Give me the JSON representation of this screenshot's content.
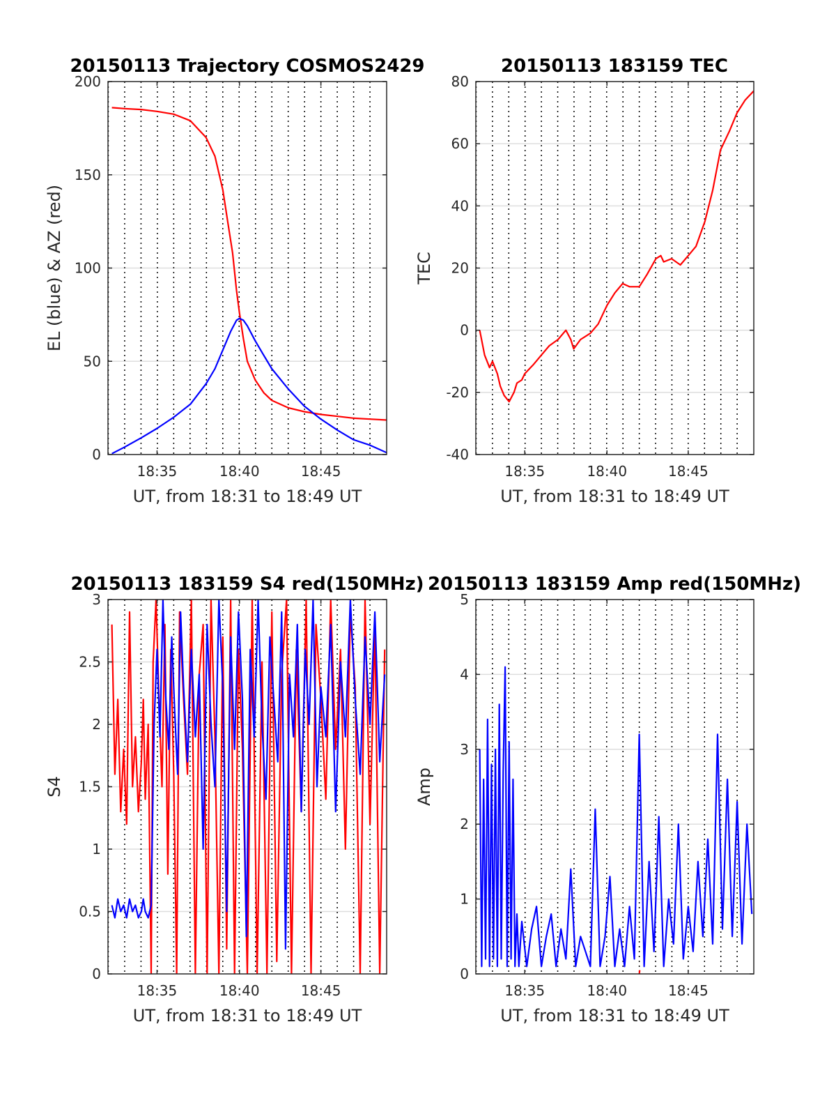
{
  "chart_data": [
    {
      "type": "line",
      "title": "20150113 Trajectory COSMOS2429",
      "xlabel": "UT, from 18:31 to 18:49 UT",
      "ylabel": "EL (blue) & AZ (red)",
      "xlim": [
        18.533,
        18.817
      ],
      "ylim": [
        0,
        200
      ],
      "xticks": [
        18.583,
        18.667,
        18.75
      ],
      "xtick_labels": [
        "18:35",
        "18:40",
        "18:45"
      ],
      "yticks": [
        0,
        50,
        100,
        150,
        200
      ],
      "ytick_labels": [
        "0",
        "50",
        "100",
        "150",
        "200"
      ],
      "grid": "vertical dotted minute lines, horizontal gridlines",
      "series": [
        {
          "color": "#ff0000",
          "x": [
            18.537,
            18.55,
            18.567,
            18.583,
            18.6,
            18.617,
            18.633,
            18.642,
            18.65,
            18.655,
            18.66,
            18.664,
            18.667,
            18.671,
            18.675,
            18.683,
            18.692,
            18.7,
            18.717,
            18.733,
            18.75,
            18.767,
            18.783,
            18.8,
            18.817
          ],
          "values": [
            186,
            185.5,
            185,
            184,
            182.5,
            179,
            170,
            160,
            142,
            125,
            108,
            88,
            76,
            62,
            50,
            40,
            33,
            29,
            25,
            23,
            21.5,
            20.5,
            19.5,
            19,
            18.5
          ]
        },
        {
          "color": "#0000ff",
          "x": [
            18.537,
            18.55,
            18.567,
            18.583,
            18.6,
            18.617,
            18.633,
            18.642,
            18.65,
            18.658,
            18.664,
            18.667,
            18.671,
            18.675,
            18.683,
            18.692,
            18.7,
            18.717,
            18.733,
            18.75,
            18.767,
            18.783,
            18.8,
            18.817
          ],
          "values": [
            0.5,
            4,
            9,
            14,
            20,
            27,
            38,
            46,
            56,
            66,
            72,
            73,
            72,
            69,
            61,
            53,
            46,
            35,
            26,
            19,
            13,
            8,
            5,
            1
          ]
        }
      ]
    },
    {
      "type": "line",
      "title": "20150113 183159 TEC",
      "xlabel": "UT, from 18:31 to 18:49 UT",
      "ylabel": "TEC",
      "xlim": [
        18.533,
        18.817
      ],
      "ylim": [
        -40,
        80
      ],
      "xticks": [
        18.583,
        18.667,
        18.75
      ],
      "xtick_labels": [
        "18:35",
        "18:40",
        "18:45"
      ],
      "yticks": [
        -40,
        -20,
        0,
        20,
        40,
        60,
        80
      ],
      "ytick_labels": [
        "-40",
        "-20",
        "0",
        "20",
        "40",
        "60",
        "80"
      ],
      "grid": "vertical dotted minute lines, horizontal gridlines",
      "series": [
        {
          "color": "#ff0000",
          "x": [
            18.537,
            18.542,
            18.547,
            18.55,
            18.555,
            18.558,
            18.562,
            18.567,
            18.572,
            18.575,
            18.58,
            18.583,
            18.592,
            18.6,
            18.608,
            18.617,
            18.625,
            18.63,
            18.633,
            18.64,
            18.65,
            18.658,
            18.667,
            18.675,
            18.683,
            18.69,
            18.7,
            18.708,
            18.717,
            18.722,
            18.725,
            18.733,
            18.742,
            18.75,
            18.758,
            18.767,
            18.775,
            18.783,
            18.792,
            18.8,
            18.808,
            18.817
          ],
          "values": [
            0,
            -8,
            -12,
            -10,
            -14,
            -18,
            -21,
            -23,
            -20,
            -17,
            -16,
            -14,
            -11,
            -8,
            -5,
            -3,
            0,
            -3,
            -6,
            -3,
            -1,
            2,
            8,
            12,
            15,
            14,
            14,
            18,
            23,
            24,
            22,
            23,
            21,
            24,
            27,
            35,
            45,
            58,
            64,
            70,
            74,
            77
          ]
        }
      ]
    },
    {
      "type": "line",
      "title": "20150113 183159 S4 red(150MHz)",
      "xlabel": "UT, from 18:31 to 18:49 UT",
      "ylabel": "S4",
      "xlim": [
        18.533,
        18.817
      ],
      "ylim": [
        0,
        3
      ],
      "xticks": [
        18.583,
        18.667,
        18.75
      ],
      "xtick_labels": [
        "18:35",
        "18:40",
        "18:45"
      ],
      "yticks": [
        0,
        0.5,
        1,
        1.5,
        2,
        2.5,
        3
      ],
      "ytick_labels": [
        "0",
        "0.5",
        "1",
        "1.5",
        "2",
        "2.5",
        "3"
      ],
      "grid": "vertical dotted minute lines, horizontal gridlines",
      "series": [
        {
          "color": "#ff0000",
          "x": [
            18.537,
            18.54,
            18.543,
            18.546,
            18.549,
            18.552,
            18.555,
            18.558,
            18.561,
            18.564,
            18.567,
            18.569,
            18.571,
            18.574,
            18.577,
            18.579,
            18.582,
            18.585,
            18.588,
            18.591,
            18.594,
            18.597,
            18.6,
            18.603,
            18.606,
            18.61,
            18.614,
            18.618,
            18.622,
            18.626,
            18.63,
            18.634,
            18.638,
            18.642,
            18.646,
            18.65,
            18.654,
            18.658,
            18.662,
            18.666,
            18.67,
            18.675,
            18.68,
            18.685,
            18.69,
            18.695,
            18.7,
            18.705,
            18.71,
            18.715,
            18.72,
            18.725,
            18.73,
            18.735,
            18.74,
            18.745,
            18.75,
            18.755,
            18.76,
            18.765,
            18.77,
            18.775,
            18.78,
            18.785,
            18.79,
            18.795,
            18.8,
            18.805,
            18.81,
            18.815
          ],
          "values": [
            2.8,
            1.6,
            2.2,
            1.3,
            1.8,
            1.2,
            2.9,
            1.5,
            1.9,
            1.3,
            1.7,
            2.2,
            1.4,
            2.0,
            0.0,
            2.5,
            3.0,
            2.2,
            1.5,
            2.8,
            0.8,
            2.6,
            1.6,
            0.0,
            2.9,
            2.2,
            1.6,
            3.0,
            0.0,
            2.4,
            2.8,
            0.0,
            3.0,
            1.9,
            0.0,
            2.7,
            0.2,
            3.0,
            0.0,
            2.6,
            1.8,
            0.0,
            3.0,
            0.0,
            2.5,
            0.0,
            2.9,
            0.1,
            2.4,
            3.0,
            0.0,
            2.6,
            1.3,
            3.0,
            0.0,
            2.8,
            2.2,
            1.4,
            3.0,
            1.8,
            2.6,
            1.0,
            2.9,
            2.3,
            0.0,
            3.0,
            1.2,
            2.8,
            0.0,
            2.6
          ]
        },
        {
          "color": "#0000ff",
          "x": [
            18.537,
            18.54,
            18.543,
            18.546,
            18.549,
            18.552,
            18.555,
            18.558,
            18.561,
            18.564,
            18.567,
            18.569,
            18.571,
            18.574,
            18.577,
            18.58,
            18.583,
            18.586,
            18.589,
            18.592,
            18.595,
            18.598,
            18.601,
            18.604,
            18.607,
            18.61,
            18.614,
            18.618,
            18.622,
            18.626,
            18.63,
            18.634,
            18.638,
            18.642,
            18.646,
            18.65,
            18.654,
            18.658,
            18.662,
            18.666,
            18.67,
            18.674,
            18.678,
            18.682,
            18.686,
            18.69,
            18.694,
            18.698,
            18.702,
            18.706,
            18.71,
            18.714,
            18.718,
            18.722,
            18.726,
            18.73,
            18.734,
            18.738,
            18.742,
            18.746,
            18.75,
            18.755,
            18.76,
            18.765,
            18.77,
            18.775,
            18.78,
            18.785,
            18.79,
            18.795,
            18.8,
            18.805,
            18.81,
            18.815
          ],
          "values": [
            0.55,
            0.45,
            0.6,
            0.5,
            0.55,
            0.45,
            0.6,
            0.5,
            0.55,
            0.45,
            0.5,
            0.6,
            0.5,
            0.45,
            0.55,
            2.0,
            2.6,
            1.9,
            3.0,
            2.2,
            1.8,
            2.7,
            2.1,
            1.6,
            2.9,
            2.3,
            1.7,
            2.6,
            1.9,
            2.4,
            1.0,
            2.8,
            2.0,
            1.5,
            3.0,
            2.3,
            0.5,
            2.7,
            1.8,
            2.9,
            2.2,
            0.3,
            2.6,
            1.9,
            3.0,
            2.0,
            1.4,
            2.7,
            2.2,
            1.7,
            2.9,
            0.2,
            2.4,
            1.9,
            2.8,
            1.3,
            2.6,
            2.0,
            3.0,
            1.5,
            2.3,
            1.9,
            2.8,
            1.3,
            2.5,
            1.9,
            3.0,
            2.2,
            1.6,
            2.7,
            2.0,
            2.9,
            1.7,
            2.4
          ]
        }
      ]
    },
    {
      "type": "line",
      "title": "20150113 183159 Amp red(150MHz)",
      "xlabel": "UT, from 18:31 to 18:49 UT",
      "ylabel": "Amp",
      "xlim": [
        18.533,
        18.817
      ],
      "ylim": [
        0,
        5
      ],
      "xticks": [
        18.583,
        18.667,
        18.75
      ],
      "xtick_labels": [
        "18:35",
        "18:40",
        "18:45"
      ],
      "yticks": [
        0,
        1,
        2,
        3,
        4,
        5
      ],
      "ytick_labels": [
        "0",
        "1",
        "2",
        "3",
        "4",
        "5"
      ],
      "grid": "vertical dotted minute lines, horizontal gridlines",
      "series": [
        {
          "color": "#0000ff",
          "x": [
            18.537,
            18.539,
            18.541,
            18.543,
            18.545,
            18.547,
            18.549,
            18.551,
            18.553,
            18.555,
            18.557,
            18.559,
            18.561,
            18.563,
            18.565,
            18.567,
            18.569,
            18.571,
            18.573,
            18.575,
            18.577,
            18.58,
            18.585,
            18.59,
            18.595,
            18.6,
            18.605,
            18.61,
            18.615,
            18.62,
            18.625,
            18.63,
            18.635,
            18.64,
            18.645,
            18.65,
            18.655,
            18.66,
            18.665,
            18.67,
            18.675,
            18.68,
            18.685,
            18.69,
            18.695,
            18.7,
            18.705,
            18.71,
            18.715,
            18.72,
            18.725,
            18.73,
            18.735,
            18.74,
            18.745,
            18.75,
            18.755,
            18.76,
            18.765,
            18.77,
            18.775,
            18.78,
            18.785,
            18.79,
            18.795,
            18.8,
            18.805,
            18.81,
            18.815
          ],
          "values": [
            3.0,
            0.1,
            2.6,
            0.2,
            3.4,
            0.1,
            2.8,
            0.2,
            3.0,
            0.1,
            3.6,
            0.2,
            2.7,
            4.1,
            0.1,
            3.1,
            0.2,
            2.6,
            0.1,
            0.8,
            0.1,
            0.7,
            0.1,
            0.6,
            0.9,
            0.1,
            0.5,
            0.8,
            0.1,
            0.6,
            0.2,
            1.4,
            0.1,
            0.5,
            0.3,
            0.1,
            2.2,
            0.1,
            0.5,
            1.3,
            0.1,
            0.6,
            0.1,
            0.9,
            0.2,
            3.2,
            0.1,
            1.5,
            0.3,
            2.1,
            0.1,
            1.0,
            0.4,
            2.0,
            0.2,
            0.9,
            0.3,
            1.5,
            0.5,
            1.8,
            0.4,
            3.2,
            0.6,
            2.6,
            0.5,
            2.3,
            0.4,
            2.0,
            0.8
          ]
        },
        {
          "color": "#ff0000",
          "x": [
            18.7,
            18.7005
          ],
          "values": [
            0.0,
            0.05
          ]
        }
      ]
    }
  ]
}
